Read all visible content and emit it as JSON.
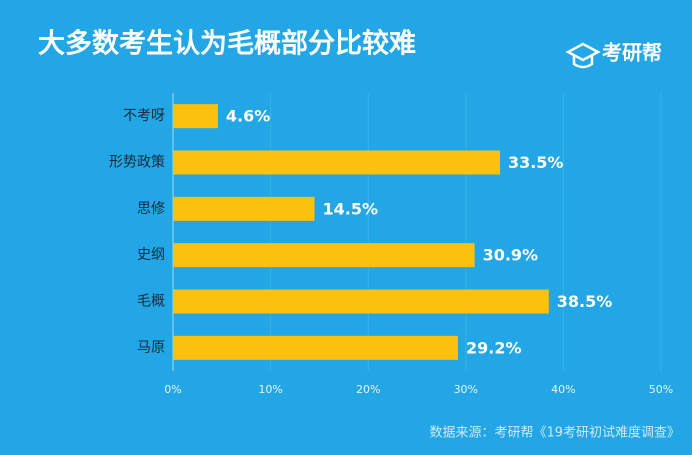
{
  "chart_data": {
    "type": "barh",
    "title": "大多数考生认为毛概部分比较难",
    "logo": "考研帮",
    "source": "数据来源：考研帮《19考研初试难度调查》",
    "categories": [
      "不考呀",
      "形势政策",
      "思修",
      "史纲",
      "毛概",
      "马原"
    ],
    "values": [
      4.6,
      33.5,
      14.5,
      30.9,
      38.5,
      29.2
    ],
    "value_labels": [
      "4.6%",
      "33.5%",
      "14.5%",
      "30.9%",
      "38.5%",
      "29.2%"
    ],
    "color": "#fcc10f",
    "xlim": [
      0,
      50
    ],
    "xticks": [
      {
        "value": 0,
        "label": "0%"
      },
      {
        "value": 10,
        "label": "10%"
      },
      {
        "value": 20,
        "label": "20%"
      },
      {
        "value": 30,
        "label": "30%"
      },
      {
        "value": 40,
        "label": "40%"
      },
      {
        "value": 50,
        "label": "50%"
      }
    ],
    "grid": true
  }
}
